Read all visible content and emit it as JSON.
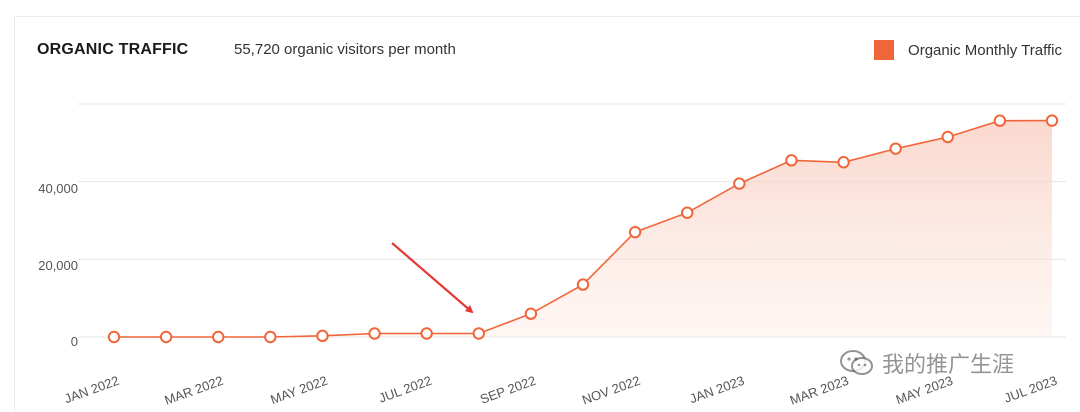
{
  "header": {
    "title": "ORGANIC TRAFFIC",
    "subtitle": "55,720 organic visitors per month"
  },
  "legend": {
    "label": "Organic Monthly Traffic"
  },
  "colors": {
    "line": "#f0663a",
    "marker_fill": "#ffffff",
    "area_top": "#f8cbbd",
    "arrow": "#e53935",
    "grid": "#e6e6e6"
  },
  "watermark": {
    "text": "我的推广生涯"
  },
  "chart_data": {
    "type": "area",
    "title": "ORGANIC TRAFFIC",
    "xlabel": "",
    "ylabel": "",
    "ylim": [
      0,
      60000
    ],
    "yticks": [
      "0",
      "20,000",
      "40,000"
    ],
    "grid": true,
    "legend_position": "top-right",
    "x": [
      "Jan 2022",
      "Feb 2022",
      "Mar 2022",
      "Apr 2022",
      "May 2022",
      "Jun 2022",
      "Jul 2022",
      "Aug 2022",
      "Sep 2022",
      "Oct 2022",
      "Nov 2022",
      "Dec 2022",
      "Jan 2023",
      "Feb 2023",
      "Mar 2023",
      "Apr 2023",
      "May 2023",
      "Jun 2023",
      "Jul 2023"
    ],
    "xtick_labels": [
      "JAN 2022",
      "MAR 2022",
      "MAY 2022",
      "JUL 2022",
      "SEP 2022",
      "NOV 2022",
      "JAN 2023",
      "MAR 2023",
      "MAY 2023",
      "JUL 2023"
    ],
    "series": [
      {
        "name": "Organic Monthly Traffic",
        "values": [
          0,
          0,
          0,
          0,
          300,
          900,
          900,
          900,
          6000,
          13500,
          27000,
          32000,
          39500,
          45500,
          45000,
          48500,
          51500,
          55700,
          55720
        ]
      }
    ],
    "annotations": [
      {
        "type": "arrow",
        "target": "Aug 2022"
      }
    ]
  }
}
